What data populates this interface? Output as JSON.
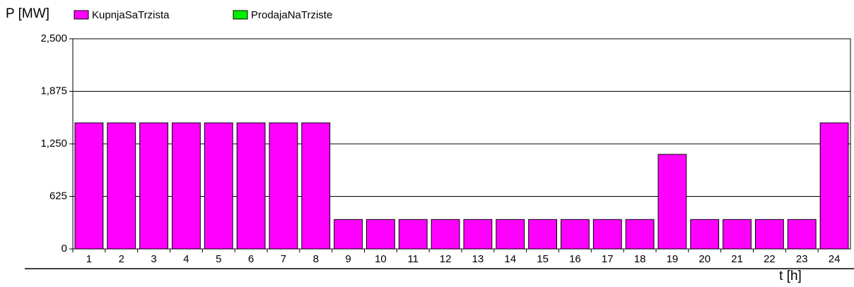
{
  "chart_data": {
    "type": "bar",
    "stacked": true,
    "y_label": "P [MW]",
    "x_label": "t [h]",
    "categories": [
      "1",
      "2",
      "3",
      "4",
      "5",
      "6",
      "7",
      "8",
      "9",
      "10",
      "11",
      "12",
      "13",
      "14",
      "15",
      "16",
      "17",
      "18",
      "19",
      "20",
      "21",
      "22",
      "23",
      "24"
    ],
    "series": [
      {
        "name": "KupnjaSaTrzista",
        "color": "#ff00ff",
        "values": [
          1500,
          1500,
          1500,
          1500,
          1500,
          1500,
          1500,
          1500,
          350,
          350,
          350,
          350,
          350,
          350,
          350,
          350,
          350,
          350,
          1125,
          350,
          350,
          350,
          350,
          1500
        ]
      },
      {
        "name": "ProdajaNaTrziste",
        "color": "#00ee00",
        "values": [
          0,
          0,
          0,
          0,
          0,
          0,
          0,
          0,
          0,
          0,
          0,
          0,
          0,
          0,
          0,
          0,
          0,
          0,
          0,
          0,
          0,
          0,
          0,
          0
        ]
      }
    ],
    "ylim": [
      0,
      2500
    ],
    "yticks": [
      0,
      {
        "value": 625,
        "label": "625"
      },
      {
        "value": 1250,
        "label": "1,250"
      },
      {
        "value": 1875,
        "label": "1,875"
      },
      {
        "value": 2500,
        "label": "2,500"
      }
    ],
    "grid": true
  }
}
